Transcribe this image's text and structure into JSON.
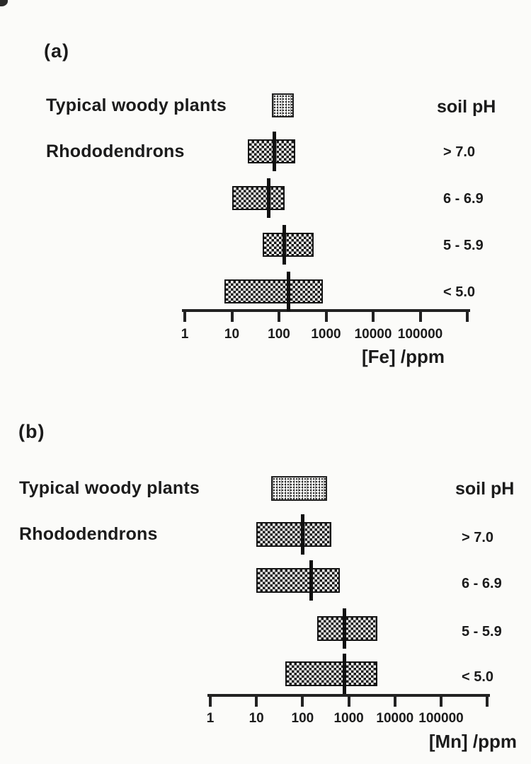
{
  "figure": {
    "background": "#fbfbf9",
    "ink": "#1b1b1b",
    "description_note": "",
    "panel_a_letter": "(a)",
    "panel_b_letter": "(b)"
  },
  "chart_data": [
    {
      "type": "range-bar",
      "panel_label": "(a)",
      "x_scale": "log10",
      "x_unit": "ppm",
      "xlabel": "[Fe] /ppm",
      "x_ticks": [
        "1",
        "10",
        "100",
        "1000",
        "10000",
        "100000"
      ],
      "x_range": [
        1,
        1000000
      ],
      "grid": false,
      "legend_header": "soil pH",
      "rows": [
        {
          "series": "Typical woody plants",
          "soil_ph": "",
          "pattern": "dotted",
          "range_ppm": [
            70,
            210
          ],
          "median_ppm": null
        },
        {
          "series": "Rhododendrons",
          "soil_ph": "> 7.0",
          "pattern": "checker",
          "range_ppm": [
            22,
            220
          ],
          "median_ppm": 80
        },
        {
          "series": "Rhododendrons",
          "soil_ph": "6 - 6.9",
          "pattern": "checker",
          "range_ppm": [
            10,
            130
          ],
          "median_ppm": 60
        },
        {
          "series": "Rhododendrons",
          "soil_ph": "5 - 5.9",
          "pattern": "checker",
          "range_ppm": [
            45,
            550
          ],
          "median_ppm": 130
        },
        {
          "series": "Rhododendrons",
          "soil_ph": "< 5.0",
          "pattern": "checker",
          "range_ppm": [
            7,
            850
          ],
          "median_ppm": 160
        }
      ]
    },
    {
      "type": "range-bar",
      "panel_label": "(b)",
      "x_scale": "log10",
      "x_unit": "ppm",
      "xlabel": "[Mn] /ppm",
      "x_ticks": [
        "1",
        "10",
        "100",
        "1000",
        "10000",
        "100000"
      ],
      "x_range": [
        1,
        1000000
      ],
      "grid": false,
      "legend_header": "soil pH",
      "rows": [
        {
          "series": "Typical woody plants",
          "soil_ph": "",
          "pattern": "dotted",
          "range_ppm": [
            21,
            340
          ],
          "median_ppm": null
        },
        {
          "series": "Rhododendrons",
          "soil_ph": "> 7.0",
          "pattern": "checker",
          "range_ppm": [
            10,
            420
          ],
          "median_ppm": 100
        },
        {
          "series": "Rhododendrons",
          "soil_ph": "6 - 6.9",
          "pattern": "checker",
          "range_ppm": [
            10,
            640
          ],
          "median_ppm": 155
        },
        {
          "series": "Rhododendrons",
          "soil_ph": "5 - 5.9",
          "pattern": "checker",
          "range_ppm": [
            210,
            4200
          ],
          "median_ppm": 800
        },
        {
          "series": "Rhododendrons",
          "soil_ph": "< 5.0",
          "pattern": "checker",
          "range_ppm": [
            42,
            4200
          ],
          "median_ppm": 800
        }
      ]
    }
  ]
}
